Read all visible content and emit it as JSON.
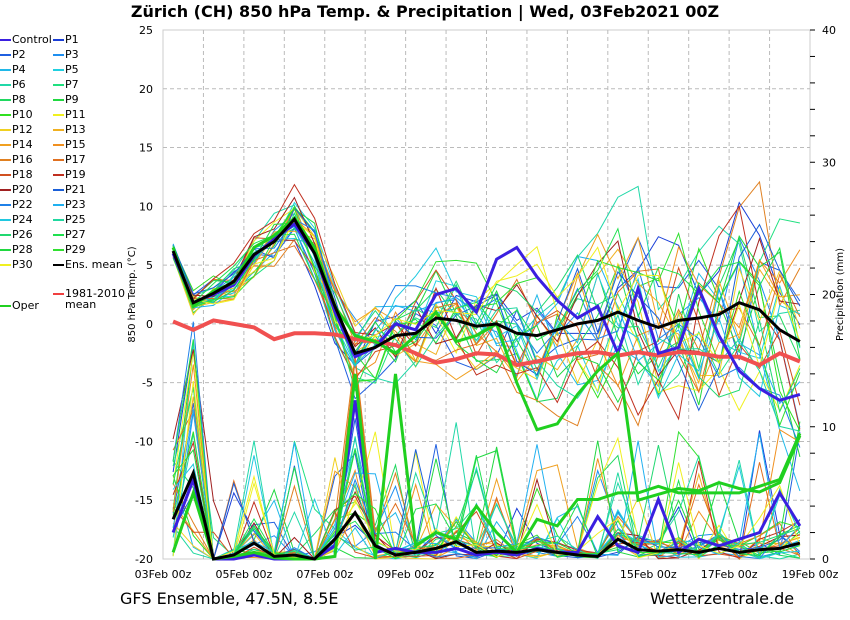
{
  "title": "Zürich  (CH)  850 hPa Temp. & Precipitation | Wed, 03Feb2021 00Z",
  "footer": {
    "left": "GFS Ensemble, 47.5N, 8.5E",
    "right": "Wetterzentrale.de"
  },
  "legend": {
    "items": [
      {
        "label": "Control",
        "color": "#3a1fe0"
      },
      {
        "label": "P1",
        "color": "#1a3fd8"
      },
      {
        "label": "P2",
        "color": "#1f5fe0"
      },
      {
        "label": "P3",
        "color": "#1f8ff0"
      },
      {
        "label": "P4",
        "color": "#20b8e8"
      },
      {
        "label": "P5",
        "color": "#20d0e0"
      },
      {
        "label": "P6",
        "color": "#20d8a8"
      },
      {
        "label": "P7",
        "color": "#20e080"
      },
      {
        "label": "P8",
        "color": "#20d860"
      },
      {
        "label": "P9",
        "color": "#20d840"
      },
      {
        "label": "P10",
        "color": "#30e020"
      },
      {
        "label": "P11",
        "color": "#f0f020"
      },
      {
        "label": "P12",
        "color": "#f0d020"
      },
      {
        "label": "P13",
        "color": "#f0b020"
      },
      {
        "label": "P14",
        "color": "#f0a020"
      },
      {
        "label": "P15",
        "color": "#f09020"
      },
      {
        "label": "P16",
        "color": "#e08020"
      },
      {
        "label": "P17",
        "color": "#e07020"
      },
      {
        "label": "P18",
        "color": "#d05020"
      },
      {
        "label": "P19",
        "color": "#c03020"
      },
      {
        "label": "P20",
        "color": "#a02020"
      },
      {
        "label": "P21",
        "color": "#1a5fd8"
      },
      {
        "label": "P22",
        "color": "#1f80e8"
      },
      {
        "label": "P23",
        "color": "#20b0f0"
      },
      {
        "label": "P24",
        "color": "#20c8e0"
      },
      {
        "label": "P25",
        "color": "#20d8a0"
      },
      {
        "label": "P26",
        "color": "#20d870"
      },
      {
        "label": "P27",
        "color": "#20e050"
      },
      {
        "label": "P28",
        "color": "#20d840"
      },
      {
        "label": "P29",
        "color": "#30e030"
      },
      {
        "label": "P30",
        "color": "#f0f020"
      },
      {
        "label": "Ens. mean",
        "color": "#000000"
      },
      {
        "label": "Oper",
        "color": "#20d020"
      },
      {
        "label": "1981-2010\nmean",
        "color": "#f04040"
      }
    ]
  },
  "chart_data": {
    "type": "line",
    "title": "Zürich  (CH)  850 hPa Temp. & Precipitation | Wed, 03Feb2021 00Z",
    "xlabel": "Date (UTC)",
    "ylabel": "850 hPa Temp. (°C)",
    "y2label": "Precipitation (mm)",
    "xticks": [
      "03Feb 00z",
      "05Feb 00z",
      "07Feb 00z",
      "09Feb 00z",
      "11Feb 00z",
      "13Feb 00z",
      "15Feb 00z",
      "17Feb 00z",
      "19Feb 00z"
    ],
    "xlim_hours": [
      0,
      384
    ],
    "ylim": [
      -20,
      25
    ],
    "yticks": [
      -20,
      -15,
      -10,
      -5,
      0,
      5,
      10,
      15,
      20,
      25
    ],
    "y2lim": [
      0,
      40
    ],
    "y2ticks": [
      0,
      10,
      20,
      30,
      40
    ],
    "grid": true,
    "legend_position": "left-outside",
    "x_hours": [
      6,
      18,
      30,
      42,
      54,
      66,
      78,
      90,
      102,
      114,
      126,
      138,
      150,
      162,
      174,
      186,
      198,
      210,
      222,
      234,
      246,
      258,
      270,
      282,
      294,
      306,
      318,
      330,
      342,
      354,
      366,
      378
    ],
    "temperature": {
      "ens_mean": [
        6.2,
        1.8,
        2.6,
        3.6,
        5.9,
        7.0,
        8.9,
        6.0,
        1.5,
        -2.5,
        -2.0,
        -1.0,
        -0.8,
        0.5,
        0.3,
        -0.2,
        0.0,
        -0.8,
        -1.0,
        -0.5,
        0.0,
        0.3,
        1.0,
        0.3,
        -0.3,
        0.3,
        0.5,
        0.8,
        1.8,
        1.2,
        -0.5,
        -1.5
      ],
      "climatology": [
        0.2,
        -0.5,
        0.3,
        0.0,
        -0.3,
        -1.3,
        -0.8,
        -0.8,
        -0.9,
        -1.3,
        -1.5,
        -1.8,
        -2.5,
        -3.3,
        -3.0,
        -2.5,
        -2.6,
        -3.5,
        -3.2,
        -2.8,
        -2.5,
        -2.4,
        -2.7,
        -2.4,
        -2.7,
        -2.4,
        -2.5,
        -2.8,
        -2.8,
        -3.5,
        -2.5,
        -3.2
      ],
      "oper": [
        6.5,
        1.5,
        2.8,
        3.5,
        6.5,
        7.5,
        9.0,
        6.5,
        1.5,
        -1.0,
        -1.5,
        -2.5,
        -1.0,
        1.0,
        -1.5,
        -1.0,
        0.0,
        -5.0,
        -9.0,
        -8.5,
        -6.0,
        -4.0,
        -2.5,
        -15.0,
        -14.5,
        -14.0,
        -14.2,
        -13.5,
        -14.0,
        -14.3,
        -13.5,
        -9.5
      ],
      "control": [
        6.0,
        1.8,
        2.5,
        3.3,
        5.8,
        7.2,
        8.5,
        6.0,
        1.0,
        -2.8,
        -2.0,
        0.0,
        -0.5,
        2.5,
        3.0,
        1.0,
        5.5,
        6.5,
        4.0,
        2.0,
        0.5,
        1.5,
        -2.5,
        3.0,
        -2.5,
        -2.0,
        3.0,
        -1.0,
        -4.0,
        -5.5,
        -6.5,
        -6.0
      ]
    },
    "precipitation": {
      "ens_mean": [
        3.0,
        6.5,
        0.0,
        0.3,
        1.2,
        0.2,
        0.3,
        0.0,
        1.5,
        3.5,
        1.0,
        0.3,
        0.5,
        0.8,
        1.3,
        0.5,
        0.6,
        0.5,
        0.7,
        0.5,
        0.3,
        0.2,
        1.5,
        0.7,
        0.6,
        0.7,
        0.5,
        0.8,
        0.5,
        0.7,
        0.8,
        1.2
      ],
      "oper": [
        0.5,
        5.0,
        0.0,
        0.2,
        0.5,
        0.1,
        0.0,
        0.0,
        0.2,
        14.0,
        0.0,
        14.0,
        1.0,
        2.0,
        1.5,
        4.0,
        2.0,
        0.5,
        3.0,
        2.5,
        4.5,
        4.5,
        5.0,
        5.0,
        5.5,
        5.0,
        5.0,
        5.0,
        5.0,
        5.5,
        6.0,
        9.5
      ],
      "control": [
        2.0,
        6.0,
        0.0,
        0.0,
        0.3,
        0.0,
        0.0,
        0.0,
        1.0,
        12.0,
        0.5,
        0.8,
        0.5,
        0.5,
        0.8,
        0.3,
        0.5,
        0.3,
        0.8,
        0.5,
        0.5,
        3.2,
        1.0,
        0.5,
        4.5,
        0.5,
        1.5,
        1.0,
        1.5,
        2.0,
        5.0,
        2.5
      ]
    }
  }
}
